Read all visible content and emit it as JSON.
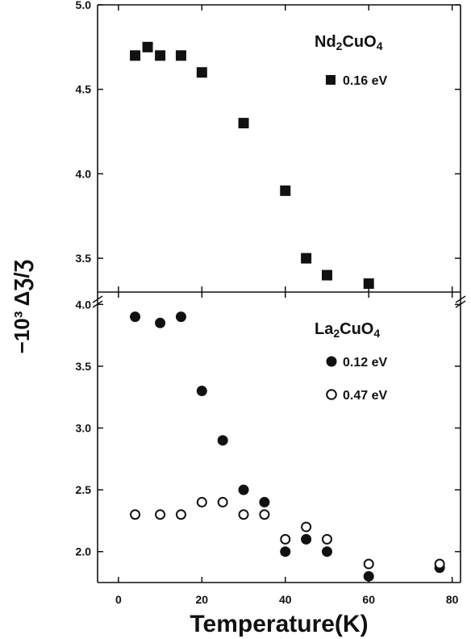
{
  "chart_data": [
    {
      "type": "scatter",
      "panel": "top",
      "title": "",
      "compound": {
        "main": "Nd",
        "sub1": "2",
        "mid": "CuO",
        "sub2": "4"
      },
      "ylim": [
        3.3,
        5.0
      ],
      "yticks": [
        3.5,
        4.0,
        4.5,
        5.0
      ],
      "ytick_labels": [
        "3.5",
        "4.0",
        "4.5",
        "5.0"
      ],
      "series": [
        {
          "name": "0.16 eV",
          "marker": "filled-square",
          "color": "#111111",
          "x": [
            4,
            7,
            10,
            15,
            20,
            30,
            40,
            45,
            50,
            60
          ],
          "y": [
            4.7,
            4.75,
            4.7,
            4.7,
            4.6,
            4.3,
            3.9,
            3.5,
            3.4,
            3.35
          ]
        }
      ]
    },
    {
      "type": "scatter",
      "panel": "bottom",
      "title": "",
      "compound": {
        "main": "La",
        "sub1": "2",
        "mid": "CuO",
        "sub2": "4"
      },
      "ylim": [
        1.75,
        4.1
      ],
      "yticks": [
        2.0,
        2.5,
        3.0,
        3.5,
        4.0
      ],
      "ytick_labels": [
        "2.0",
        "2.5",
        "3.0",
        "3.5",
        "4.0"
      ],
      "series": [
        {
          "name": "0.12 eV",
          "marker": "filled-circle",
          "color": "#111111",
          "x": [
            4,
            10,
            15,
            20,
            25,
            30,
            35,
            40,
            45,
            50,
            60,
            77
          ],
          "y": [
            3.9,
            3.85,
            3.9,
            3.3,
            2.9,
            2.5,
            2.4,
            2.0,
            2.1,
            2.0,
            1.8,
            1.87
          ]
        },
        {
          "name": "0.47 eV",
          "marker": "open-circle",
          "color": "#111111",
          "x": [
            4,
            10,
            15,
            20,
            25,
            30,
            35,
            40,
            45,
            50,
            60,
            77
          ],
          "y": [
            2.3,
            2.3,
            2.3,
            2.4,
            2.4,
            2.3,
            2.3,
            2.1,
            2.2,
            2.1,
            1.9,
            1.9
          ]
        }
      ]
    }
  ],
  "axes": {
    "xlabel": "Temperature(K)",
    "ylabel": "−10³ ΔƷ/Ʒ",
    "xlim": [
      -5,
      82
    ],
    "xticks": [
      0,
      20,
      40,
      60,
      80
    ],
    "xtick_labels": [
      "0",
      "20",
      "40",
      "60",
      "80"
    ]
  }
}
